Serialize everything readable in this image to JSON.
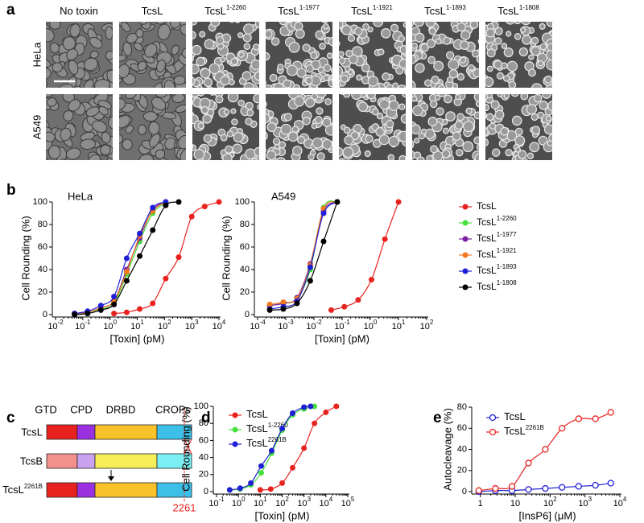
{
  "panel_labels": [
    "a",
    "b",
    "c",
    "d",
    "e"
  ],
  "micrographs": {
    "columns": [
      {
        "name": "No toxin"
      },
      {
        "name": "TcsL"
      },
      {
        "name": "TcsL",
        "sup": "1-2260"
      },
      {
        "name": "TcsL",
        "sup": "1-1977"
      },
      {
        "name": "TcsL",
        "sup": "1-1921"
      },
      {
        "name": "TcsL",
        "sup": "1-1893"
      },
      {
        "name": "TcsL",
        "sup": "1-1808"
      }
    ],
    "rows": [
      "HeLa",
      "A549"
    ]
  },
  "domain_diagram": {
    "domains": [
      "GTD",
      "CPD",
      "DRBD",
      "CROPs"
    ],
    "constructs": [
      {
        "name": "TcsL"
      },
      {
        "name": "TcsB"
      },
      {
        "name": "TcsL",
        "sup": "2261B"
      }
    ],
    "cut_site": "2261"
  },
  "chart_data": [
    {
      "type": "line",
      "title": "HeLa",
      "x_label": "[Toxin] (pM)",
      "y_label": "Cell Rounding (%)",
      "xscale": "log",
      "legend": "outside-right",
      "marker": "filled",
      "xlim": [
        0.01,
        10000
      ],
      "xticks": [
        {
          "value": 0.01,
          "label": "10",
          "sup": "-2"
        },
        {
          "value": 0.1,
          "label": "10",
          "sup": "-1"
        },
        {
          "value": 1,
          "label": "10",
          "sup": "0"
        },
        {
          "value": 10,
          "label": "10",
          "sup": "1"
        },
        {
          "value": 100,
          "label": "10",
          "sup": "2"
        },
        {
          "value": 1000,
          "label": "10",
          "sup": "3"
        },
        {
          "value": 10000,
          "label": "10",
          "sup": "4"
        }
      ],
      "ylim": [
        0,
        100
      ],
      "yticks": [
        0,
        20,
        40,
        60,
        80,
        100
      ],
      "series": [
        {
          "name": "TcsL",
          "color": "#e8231f",
          "x": [
            1.4,
            4.1,
            12.3,
            37,
            111,
            333,
            1000,
            3000,
            10000
          ],
          "values": [
            1,
            2,
            5,
            10,
            32,
            51,
            87,
            96,
            100
          ]
        },
        {
          "name": "TcsL",
          "name_sup": "1-2260",
          "color": "#45e03c",
          "x": [
            0.05,
            0.15,
            0.46,
            1.4,
            4.1,
            12.3,
            37,
            111
          ],
          "values": [
            1,
            2,
            5,
            10,
            36,
            65,
            90,
            99
          ]
        },
        {
          "name": "TcsL",
          "name_sup": "1-1977",
          "color": "#7a1fa2",
          "x": [
            0.05,
            0.15,
            0.46,
            1.4,
            4.1,
            12.3,
            37,
            111
          ],
          "values": [
            1,
            2,
            6,
            12,
            40,
            68,
            93,
            100
          ]
        },
        {
          "name": "TcsL",
          "name_sup": "1-1921",
          "color": "#f0781e",
          "x": [
            0.05,
            0.15,
            0.46,
            1.4,
            4.1,
            12.3,
            37,
            111
          ],
          "values": [
            1,
            2,
            6,
            12,
            38,
            70,
            92,
            100
          ]
        },
        {
          "name": "TcsL",
          "name_sup": "1-1893",
          "color": "#1f1fd6",
          "x": [
            0.05,
            0.15,
            0.46,
            1.4,
            4.1,
            12.3,
            37,
            111
          ],
          "values": [
            1,
            3,
            8,
            16,
            50,
            72,
            95,
            100
          ]
        },
        {
          "name": "TcsL",
          "name_sup": "1-1808",
          "color": "#000000",
          "x": [
            0.05,
            0.15,
            0.46,
            1.4,
            4.1,
            12.3,
            37,
            111,
            333
          ],
          "values": [
            0,
            1,
            4,
            9,
            30,
            52,
            75,
            97,
            100
          ]
        }
      ]
    },
    {
      "type": "line",
      "title": "A549",
      "x_label": "[Toxin] (pM)",
      "y_label": "Cell Rounding (%)",
      "xscale": "log",
      "marker": "filled",
      "xlim": [
        0.0001,
        100
      ],
      "xticks": [
        {
          "value": 0.0001,
          "label": "10",
          "sup": "-4"
        },
        {
          "value": 0.001,
          "label": "10",
          "sup": "-3"
        },
        {
          "value": 0.01,
          "label": "10",
          "sup": "-2"
        },
        {
          "value": 0.1,
          "label": "10",
          "sup": "-1"
        },
        {
          "value": 1,
          "label": "10",
          "sup": "0"
        },
        {
          "value": 10,
          "label": "10",
          "sup": "1"
        },
        {
          "value": 100,
          "label": "10",
          "sup": "2"
        }
      ],
      "ylim": [
        0,
        100
      ],
      "yticks": [
        0,
        20,
        40,
        60,
        80,
        100
      ],
      "series": [
        {
          "color": "#e8231f",
          "x": [
            0.041,
            0.12,
            0.37,
            1.1,
            3.3,
            10
          ],
          "values": [
            4,
            7,
            13,
            31,
            67,
            100
          ]
        },
        {
          "color": "#45e03c",
          "x": [
            0.00027,
            0.00082,
            0.0025,
            0.0074,
            0.022,
            0.067
          ],
          "values": [
            8,
            10,
            14,
            40,
            95,
            100
          ]
        },
        {
          "color": "#7a1fa2",
          "x": [
            0.00027,
            0.00082,
            0.0025,
            0.0074,
            0.022,
            0.067
          ],
          "values": [
            8,
            10,
            15,
            45,
            92,
            100
          ]
        },
        {
          "color": "#f0781e",
          "x": [
            0.00027,
            0.00082,
            0.0025,
            0.0074,
            0.022,
            0.067
          ],
          "values": [
            9,
            11,
            14,
            44,
            94,
            100
          ]
        },
        {
          "color": "#1f1fd6",
          "x": [
            0.00027,
            0.00082,
            0.0025,
            0.0074,
            0.022,
            0.067
          ],
          "values": [
            5,
            7,
            12,
            42,
            90,
            100
          ]
        },
        {
          "color": "#000000",
          "x": [
            0.00027,
            0.00082,
            0.0025,
            0.0074,
            0.022,
            0.067
          ],
          "values": [
            4,
            5,
            10,
            30,
            65,
            100
          ]
        }
      ]
    },
    {
      "type": "line",
      "x_label": "[Toxin] (pM)",
      "y_label": "Cell Rounding (%)",
      "xscale": "log",
      "legend": "upper-left",
      "marker": "filled",
      "xlim": [
        0.1,
        100000
      ],
      "xticks": [
        {
          "value": 0.1,
          "label": "10",
          "sup": "-1"
        },
        {
          "value": 1,
          "label": "10",
          "sup": "0"
        },
        {
          "value": 10,
          "label": "10",
          "sup": "1"
        },
        {
          "value": 100,
          "label": "10",
          "sup": "2"
        },
        {
          "value": 1000,
          "label": "10",
          "sup": "3"
        },
        {
          "value": 10000,
          "label": "10",
          "sup": "4"
        },
        {
          "value": 100000,
          "label": "10",
          "sup": "5"
        }
      ],
      "ylim": [
        0,
        100
      ],
      "yticks": [
        0,
        20,
        40,
        60,
        80,
        100
      ],
      "series": [
        {
          "name": "TcsL",
          "color": "#e8231f",
          "x": [
            10,
            30,
            100,
            300,
            1000,
            3000,
            10000,
            30000
          ],
          "values": [
            2,
            3,
            10,
            28,
            51,
            80,
            93,
            100
          ]
        },
        {
          "name": "TcsL",
          "name_sup": "1-2260",
          "color": "#45e03c",
          "x": [
            0.4,
            1.2,
            3.7,
            11,
            33,
            100,
            300,
            1000,
            3000
          ],
          "values": [
            2,
            3,
            8,
            22,
            45,
            72,
            90,
            97,
            100
          ]
        },
        {
          "name": "TcsL",
          "name_sup": "2261B",
          "color": "#1f1fd6",
          "x": [
            0.4,
            1.2,
            3.7,
            11,
            33,
            100,
            300,
            1000,
            2000
          ],
          "values": [
            2,
            4,
            10,
            30,
            48,
            74,
            92,
            99,
            100
          ]
        }
      ]
    },
    {
      "type": "line",
      "x_label": "[InsP6] (μM)",
      "y_label": "Autocleavage (%)",
      "xscale": "log",
      "legend": "upper-left",
      "marker": "open",
      "xlim": [
        0.7,
        10000
      ],
      "xticks": [
        1,
        10,
        {
          "value": 100,
          "label": "10",
          "sup": "2"
        },
        {
          "value": 1000,
          "label": "10",
          "sup": "3"
        },
        {
          "value": 10000,
          "label": "10",
          "sup": "4"
        }
      ],
      "ylim": [
        0,
        80
      ],
      "yticks": [
        0,
        20,
        40,
        60,
        80
      ],
      "series": [
        {
          "name": "TcsL",
          "color": "#1f1fd6",
          "x": [
            0.9,
            2.7,
            8.1,
            24,
            73,
            220,
            660,
            2000,
            5500
          ],
          "values": [
            0,
            1,
            1,
            2,
            3,
            4,
            5,
            6,
            8
          ]
        },
        {
          "name": "TcsL",
          "name_sup": "2261B",
          "color": "#e8231f",
          "x": [
            0.9,
            2.7,
            8.1,
            24,
            73,
            220,
            660,
            2000,
            5500
          ],
          "values": [
            1,
            3,
            5,
            27,
            40,
            60,
            69,
            69,
            75
          ]
        }
      ]
    }
  ]
}
